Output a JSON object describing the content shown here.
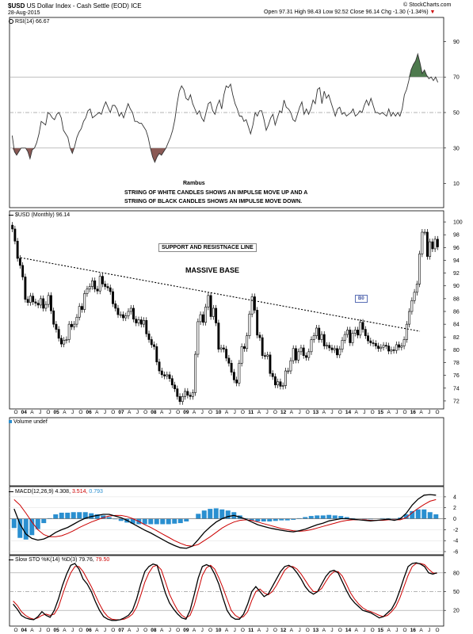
{
  "header": {
    "symbol": "$USD",
    "name": "US Dollar Index - Cash Settle (EOD)",
    "exchange": "ICE",
    "date": "28-Aug-2015",
    "ohlc": {
      "open_label": "Open",
      "open": "97.31",
      "high_label": "High",
      "high": "98.43",
      "low_label": "Low",
      "low": "92.52",
      "close_label": "Close",
      "close": "96.14",
      "chg_label": "Chg",
      "chg": "-1.30 (-1.34%)"
    },
    "watermark": "© StockCharts.com"
  },
  "rsi": {
    "label": "RSI(14) 66.67"
  },
  "annotations": {
    "author": "Rambus",
    "note_line1": "STRIING OF WHITE CANDLES SHOWS AN IMPULSE MOVE UP AND A",
    "note_line2": "STRIING OF BLACK CANDLES SHOWS AN IMPULSE MOVE DOWN.",
    "support_resistance": "SUPPORT AND RESISTNACE LINE",
    "massive_base": "MASSIVE BASE",
    "breakout": "B0"
  },
  "price": {
    "label": "$USD (Monthly) 96.14"
  },
  "volume": {
    "label": "Volume undef"
  },
  "macd": {
    "label": "MACD(12,26,9)",
    "macd": "4.308,",
    "signal": "3.514,",
    "hist": "0.793"
  },
  "sto": {
    "label": "Slow STO %K(14) %D(3)",
    "k": "79.76,",
    "d": "79.50"
  },
  "colors": {
    "macd_signal": "#cc0000",
    "macd_hist": "#2a8fd0",
    "rsi_over": "#4e7a4e",
    "rsi_under": "#8b5a55",
    "grid": "#9a9a9a"
  },
  "chart_data": [
    {
      "type": "line",
      "title": "RSI(14) 66.67",
      "x_labels": [
        "O",
        "04",
        "A",
        "J",
        "O",
        "05",
        "A",
        "J",
        "O",
        "06",
        "A",
        "J",
        "O",
        "07",
        "A",
        "J",
        "O",
        "08",
        "A",
        "J",
        "O",
        "09",
        "A",
        "J",
        "O",
        "10",
        "A",
        "J",
        "O",
        "11",
        "A",
        "J",
        "O",
        "12",
        "A",
        "J",
        "O",
        "13",
        "A",
        "J",
        "O",
        "14",
        "A",
        "J",
        "O",
        "15",
        "A",
        "J",
        "O",
        "16",
        "A",
        "J",
        "O"
      ],
      "ylim": [
        0,
        100
      ],
      "y_ticks": [
        10,
        30,
        50,
        70,
        90
      ],
      "reference_lines": [
        30,
        50,
        70
      ],
      "series": [
        {
          "values": [
            37,
            28,
            26,
            28,
            30,
            30,
            30,
            28,
            24,
            29,
            30,
            33,
            38,
            45,
            44,
            43,
            50,
            49,
            47,
            46,
            49,
            50,
            47,
            40,
            38,
            36,
            30,
            27,
            31,
            36,
            39,
            41,
            45,
            47,
            51,
            52,
            47,
            48,
            49,
            50,
            49,
            53,
            56,
            53,
            50,
            54,
            54,
            52,
            48,
            50,
            47,
            51,
            55,
            52,
            50,
            45,
            45,
            44,
            44,
            42,
            40,
            36,
            30,
            25,
            22,
            25,
            27,
            26,
            28,
            30,
            33,
            36,
            40,
            46,
            55,
            62,
            65,
            63,
            58,
            57,
            60,
            55,
            52,
            49,
            51,
            47,
            45,
            50,
            55,
            56,
            51,
            49,
            54,
            57,
            52,
            60,
            65,
            64,
            66,
            60,
            55,
            52,
            48,
            48,
            45,
            46,
            42,
            38,
            43,
            50,
            48,
            51,
            51,
            46,
            40,
            43,
            47,
            49,
            43,
            47,
            51,
            50,
            57,
            53,
            52,
            50,
            46,
            45,
            49,
            53,
            56,
            49,
            52,
            49,
            52,
            57,
            55,
            63,
            64,
            55,
            62,
            58,
            60,
            56,
            52,
            48,
            52,
            53,
            49,
            50,
            48,
            49,
            50,
            52,
            48,
            49,
            51,
            50,
            54,
            57,
            54,
            58,
            54,
            50,
            50,
            49,
            50,
            49,
            48,
            52,
            48,
            50,
            48,
            50,
            48,
            52,
            60,
            63,
            68,
            74,
            77,
            79,
            83,
            78,
            72,
            74,
            71,
            69,
            70,
            68,
            70,
            67
          ]
        }
      ]
    },
    {
      "type": "line",
      "title": "$USD (Monthly) 96.14",
      "x_labels": [
        "O",
        "04",
        "A",
        "J",
        "O",
        "05",
        "A",
        "J",
        "O",
        "06",
        "A",
        "J",
        "O",
        "07",
        "A",
        "J",
        "O",
        "08",
        "A",
        "J",
        "O",
        "09",
        "A",
        "J",
        "O",
        "10",
        "A",
        "J",
        "O",
        "11",
        "A",
        "J",
        "O",
        "12",
        "A",
        "J",
        "O",
        "13",
        "A",
        "J",
        "O",
        "14",
        "A",
        "J",
        "O",
        "15",
        "A",
        "J",
        "O",
        "16",
        "A",
        "J",
        "O"
      ],
      "ylim": [
        71,
        101
      ],
      "y_ticks": [
        72,
        74,
        76,
        78,
        80,
        82,
        84,
        86,
        88,
        90,
        92,
        94,
        96,
        98,
        100
      ],
      "series": [
        {
          "name": "$USD",
          "values": [
            98.9,
            97.0,
            94.3,
            93.2,
            91.4,
            87.9,
            87.4,
            88.4,
            87.5,
            87.3,
            87.0,
            88.0,
            86.5,
            87.1,
            88.5,
            86.1,
            84.0,
            83.2,
            81.8,
            80.9,
            81.5,
            81.6,
            84.0,
            83.6,
            84.0,
            85.1,
            86.8,
            86.3,
            88.8,
            89.5,
            89.9,
            90.8,
            89.5,
            89.2,
            91.5,
            90.3,
            89.9,
            89.7,
            89.1,
            87.2,
            86.5,
            85.5,
            85.5,
            85.0,
            85.3,
            86.0,
            86.5,
            84.8,
            84.2,
            84.7,
            84.0,
            84.6,
            82.5,
            81.6,
            80.8,
            80.5,
            78.1,
            76.7,
            76.1,
            75.9,
            76.1,
            75.5,
            74.5,
            73.9,
            72.7,
            71.9,
            72.7,
            73.5,
            72.9,
            72.7,
            73.3,
            79.3,
            84.4,
            85.5,
            84.3,
            86.7,
            88.5,
            85.2,
            86.5,
            84.2,
            80.1,
            80.3,
            80.1,
            78.7,
            77.9,
            76.5,
            75.3,
            74.8,
            77.9,
            80.5,
            80.2,
            82.2,
            85.6,
            88.3,
            86.2,
            82.3,
            81.9,
            79.1,
            79.0,
            79.2,
            76.3,
            75.8,
            74.5,
            75.0,
            74.3,
            74.4,
            76.7,
            76.7,
            78.3,
            80.2,
            78.4,
            79.7,
            80.3,
            79.1,
            78.8,
            79.7,
            81.6,
            82.2,
            83.4,
            81.6,
            82.4,
            80.6,
            80.7,
            80.3,
            80.0,
            80.2,
            79.2,
            80.1,
            81.5,
            82.4,
            83.1,
            81.1,
            82.6,
            83.1,
            82.3,
            84.3,
            83.2,
            82.2,
            81.4,
            81.1,
            81.0,
            80.6,
            80.2,
            80.4,
            80.7,
            80.6,
            79.8,
            80.0,
            79.9,
            80.8,
            80.4,
            80.6,
            81.6,
            84.0,
            86.0,
            87.7,
            89.0,
            90.3,
            95.0,
            98.4,
            98.4,
            94.6,
            96.9,
            95.8,
            97.3,
            96.1
          ]
        }
      ],
      "support_resistance_line": {
        "label": "SUPPORT AND RESISTNACE LINE",
        "from": 94.5,
        "to": 82.9
      }
    },
    {
      "type": "bar",
      "title": "Volume undef",
      "series": []
    },
    {
      "type": "line",
      "title": "MACD(12,26,9) 4.308, 3.514, 0.793",
      "ylim": [
        -6,
        5
      ],
      "y_ticks": [
        -6,
        -4,
        -2,
        0,
        2,
        4
      ],
      "series": [
        {
          "name": "MACD",
          "values": [
            1.8,
            -1.0,
            -2.8,
            -3.6,
            -3.9,
            -3.7,
            -3.2,
            -2.5,
            -2.0,
            -1.6,
            -1.0,
            -0.4,
            0.1,
            0.4,
            0.6,
            0.8,
            0.8,
            0.5,
            0.2,
            -0.3,
            -0.9,
            -1.5,
            -2.1,
            -2.6,
            -3.2,
            -3.8,
            -4.4,
            -4.9,
            -5.3,
            -5.4,
            -5.0,
            -3.8,
            -2.5,
            -1.5,
            -0.6,
            0.0,
            0.4,
            0.6,
            0.3,
            -0.1,
            -0.6,
            -1.1,
            -1.4,
            -1.7,
            -1.9,
            -2.1,
            -2.3,
            -2.4,
            -2.2,
            -1.9,
            -1.5,
            -1.1,
            -0.8,
            -0.4,
            -0.2,
            0.0,
            0.0,
            -0.1,
            -0.2,
            -0.3,
            -0.4,
            -0.3,
            -0.2,
            -0.1,
            -0.3,
            0.0,
            1.0,
            2.5,
            3.6,
            4.3,
            4.4,
            4.3
          ]
        },
        {
          "name": "Signal",
          "values": [
            3.5,
            2.5,
            1.0,
            -0.6,
            -2.0,
            -2.9,
            -3.3,
            -3.3,
            -3.1,
            -2.7,
            -2.2,
            -1.6,
            -1.1,
            -0.6,
            -0.2,
            0.2,
            0.5,
            0.6,
            0.6,
            0.4,
            0.0,
            -0.5,
            -1.1,
            -1.6,
            -2.2,
            -2.8,
            -3.4,
            -4.0,
            -4.5,
            -4.9,
            -5.0,
            -4.7,
            -4.0,
            -3.3,
            -2.5,
            -1.7,
            -1.1,
            -0.6,
            -0.3,
            -0.2,
            -0.3,
            -0.6,
            -0.9,
            -1.2,
            -1.5,
            -1.8,
            -2.0,
            -2.2,
            -2.3,
            -2.2,
            -2.0,
            -1.7,
            -1.4,
            -1.1,
            -0.8,
            -0.5,
            -0.3,
            -0.2,
            -0.2,
            -0.2,
            -0.3,
            -0.3,
            -0.3,
            -0.2,
            -0.2,
            -0.2,
            0.2,
            1.1,
            1.9,
            2.6,
            3.2,
            3.5
          ]
        },
        {
          "name": "Histogram",
          "values": [
            -1.7,
            -3.5,
            -3.8,
            -3.0,
            -1.9,
            -0.8,
            0.1,
            0.8,
            1.1,
            1.1,
            1.2,
            1.2,
            1.2,
            1.0,
            0.8,
            0.6,
            0.3,
            -0.1,
            -0.4,
            -0.7,
            -0.9,
            -1.0,
            -1.0,
            -1.0,
            -1.0,
            -1.0,
            -1.0,
            -0.9,
            -0.8,
            -0.5,
            0.0,
            0.9,
            1.5,
            1.8,
            1.9,
            1.7,
            1.5,
            1.2,
            0.6,
            0.1,
            -0.3,
            -0.5,
            -0.5,
            -0.5,
            -0.4,
            -0.3,
            -0.3,
            -0.2,
            0.1,
            0.3,
            0.5,
            0.6,
            0.6,
            0.7,
            0.6,
            0.5,
            0.3,
            0.1,
            0.0,
            -0.1,
            -0.1,
            0.0,
            0.1,
            0.1,
            -0.1,
            0.2,
            0.8,
            1.4,
            1.7,
            1.7,
            1.2,
            0.8
          ]
        }
      ]
    },
    {
      "type": "line",
      "title": "Slow STO %K(14) %D(3) 79.76, 79.50",
      "ylim": [
        0,
        100
      ],
      "y_ticks": [
        20,
        50,
        80
      ],
      "reference_lines": [
        20,
        50,
        80
      ],
      "x_labels": [
        "O",
        "04",
        "A",
        "J",
        "O",
        "05",
        "A",
        "J",
        "O",
        "06",
        "A",
        "J",
        "O",
        "07",
        "A",
        "J",
        "O",
        "08",
        "A",
        "J",
        "O",
        "09",
        "A",
        "J",
        "O",
        "10",
        "A",
        "J",
        "O",
        "11",
        "A",
        "J",
        "O",
        "12",
        "A",
        "J",
        "O",
        "13",
        "A",
        "J",
        "O",
        "14",
        "A",
        "J",
        "O",
        "15",
        "A",
        "J",
        "O",
        "16",
        "A",
        "J",
        "O"
      ],
      "series": [
        {
          "name": "%K",
          "values": [
            30,
            22,
            12,
            8,
            6,
            5,
            10,
            18,
            12,
            9,
            20,
            38,
            60,
            78,
            92,
            95,
            86,
            70,
            62,
            50,
            34,
            20,
            10,
            6,
            4,
            4,
            5,
            8,
            12,
            20,
            38,
            62,
            82,
            90,
            94,
            92,
            70,
            48,
            32,
            22,
            14,
            8,
            6,
            20,
            45,
            72,
            90,
            93,
            90,
            78,
            62,
            40,
            20,
            10,
            6,
            6,
            14,
            30,
            50,
            58,
            50,
            42,
            46,
            58,
            70,
            82,
            90,
            92,
            88,
            80,
            70,
            58,
            50,
            46,
            50,
            62,
            74,
            82,
            84,
            80,
            66,
            52,
            40,
            32,
            26,
            20,
            18,
            16,
            12,
            8,
            10,
            16,
            22,
            34,
            52,
            72,
            90,
            95,
            96,
            94,
            90,
            80,
            78,
            80
          ]
        },
        {
          "name": "%D",
          "values": [
            35,
            28,
            18,
            12,
            8,
            6,
            8,
            12,
            14,
            12,
            14,
            25,
            45,
            64,
            80,
            90,
            90,
            82,
            70,
            58,
            44,
            30,
            18,
            10,
            6,
            5,
            5,
            6,
            9,
            14,
            25,
            44,
            65,
            80,
            90,
            92,
            85,
            66,
            46,
            32,
            20,
            12,
            8,
            12,
            28,
            52,
            76,
            88,
            92,
            86,
            72,
            56,
            38,
            20,
            12,
            8,
            10,
            18,
            36,
            50,
            54,
            48,
            45,
            50,
            60,
            72,
            84,
            90,
            90,
            86,
            78,
            68,
            58,
            50,
            50,
            55,
            66,
            76,
            82,
            82,
            75,
            62,
            48,
            38,
            30,
            24,
            20,
            18,
            15,
            12,
            10,
            12,
            18,
            26,
            40,
            58,
            76,
            90,
            95,
            95,
            93,
            86,
            80,
            79
          ]
        }
      ]
    }
  ]
}
